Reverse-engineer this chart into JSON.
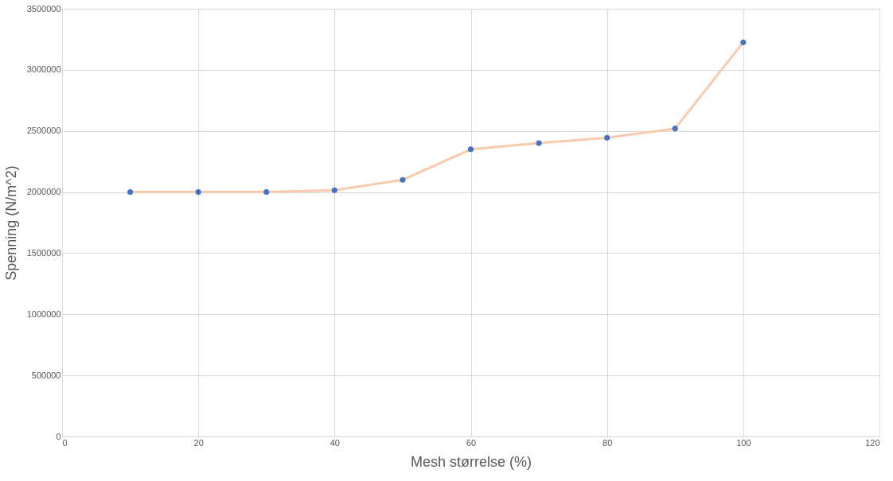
{
  "chart_data": {
    "type": "line",
    "xlabel": "Mesh størrelse (%)",
    "ylabel": "Spenning (N/m^2)",
    "x": [
      10,
      20,
      30,
      40,
      50,
      60,
      70,
      80,
      90,
      100
    ],
    "series": [
      {
        "color": "#f8cbad",
        "colors": [
          "#4472c4",
          "#4472c4",
          "#4472c4",
          "#4472c4",
          "#4472c4",
          "#4472c4",
          "#4472c4",
          "#4472c4",
          "#4472c4",
          "#4472c4"
        ],
        "values": [
          2000000,
          2000000,
          2000000,
          2015000,
          2100000,
          2350000,
          2400000,
          2445000,
          2520000,
          3225000
        ]
      }
    ],
    "xlim": [
      0,
      120
    ],
    "xticks": [
      0,
      20,
      40,
      60,
      80,
      100,
      120
    ],
    "ylim": [
      0,
      3500000
    ],
    "yticks": [
      0,
      500000,
      1000000,
      1500000,
      2000000,
      2500000,
      3000000,
      3500000
    ],
    "grid": true,
    "marker": "circle",
    "line_style": "solid"
  }
}
